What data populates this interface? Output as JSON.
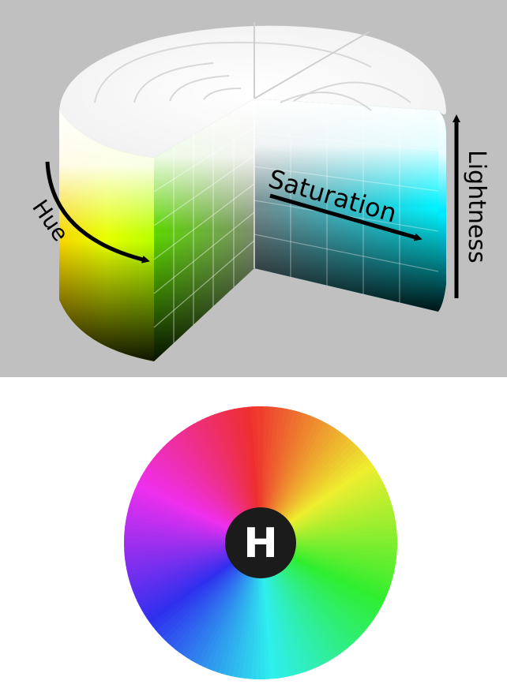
{
  "hsl_cylinder": {
    "labels": {
      "hue": "Hue",
      "saturation": "Saturation",
      "lightness": "Lightness"
    },
    "colors": {
      "background": "#c0c0c0",
      "hue_face": "#e6ff00",
      "cut_face_hue": "#5cd600",
      "inner_face_hue": "#00f0ff",
      "arrow": "#000000"
    }
  },
  "hue_wheel": {
    "center_label": "H",
    "colors": {
      "red": "#e8402c",
      "orange": "#f39a2d",
      "yellow": "#fbf037",
      "green": "#86e61a",
      "cyan": "#7ff0f4",
      "blue": "#1f6cf0",
      "magenta": "#e54fee",
      "center_disc": "#1b1b1b"
    }
  }
}
